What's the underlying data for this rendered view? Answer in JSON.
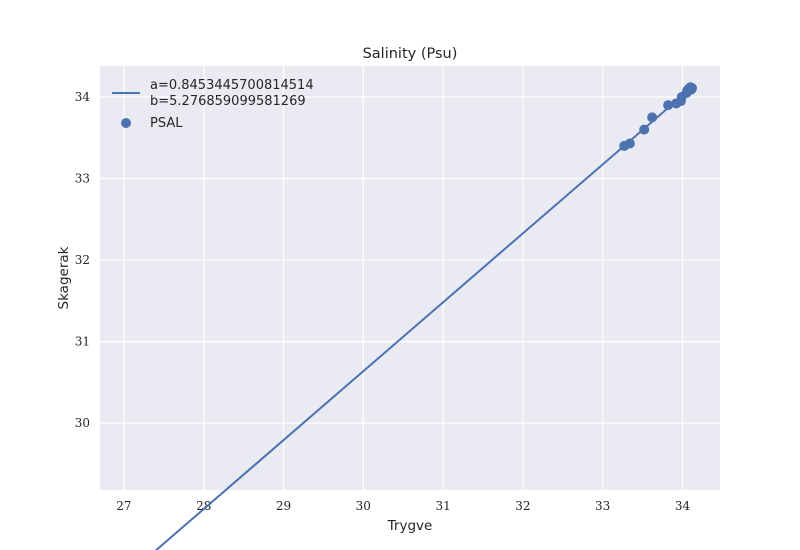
{
  "chart_data": {
    "type": "scatter",
    "title": "Salinity (Psu)",
    "xlabel": "Trygve",
    "ylabel": "Skagerak",
    "xlim": [
      26.7,
      34.47
    ],
    "ylim": [
      29.18,
      34.38
    ],
    "xticks": [
      27,
      28,
      29,
      30,
      31,
      32,
      33,
      34
    ],
    "yticks": [
      30,
      31,
      32,
      33,
      34
    ],
    "grid": true,
    "background": "#eaeaf2",
    "series_color": "#4c72b0",
    "legend_position": "top-left",
    "fit_line": {
      "label_a": "a=0.8453445700814514",
      "label_b": "b=5.276859099581269",
      "a": 0.8453445700814514,
      "b": 5.276859099581269,
      "x_range": [
        27.02,
        34.1
      ]
    },
    "series": [
      {
        "name": "PSAL",
        "points": [
          {
            "x": 33.27,
            "y": 33.4
          },
          {
            "x": 33.34,
            "y": 33.43
          },
          {
            "x": 33.52,
            "y": 33.6
          },
          {
            "x": 33.62,
            "y": 33.75
          },
          {
            "x": 33.82,
            "y": 33.9
          },
          {
            "x": 33.92,
            "y": 33.92
          },
          {
            "x": 33.98,
            "y": 33.95
          },
          {
            "x": 33.99,
            "y": 34.0
          },
          {
            "x": 34.05,
            "y": 34.05
          },
          {
            "x": 34.06,
            "y": 34.08
          },
          {
            "x": 34.08,
            "y": 34.1
          },
          {
            "x": 34.1,
            "y": 34.12
          },
          {
            "x": 34.11,
            "y": 34.09
          },
          {
            "x": 34.12,
            "y": 34.11
          }
        ]
      }
    ]
  }
}
